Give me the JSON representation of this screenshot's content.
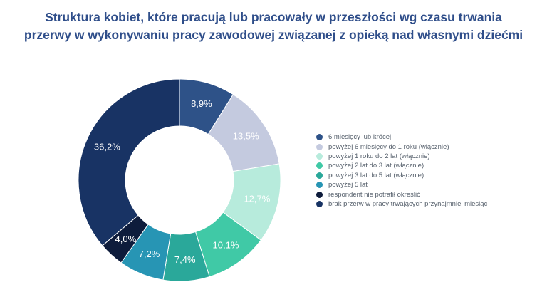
{
  "title": {
    "line1": "Struktura kobiet, które pracują lub pracowały w przeszłości wg czasu trwania",
    "line2": "przerwy w wykonywaniu pracy zawodowej związanej z opieką nad własnymi dziećmi"
  },
  "chart_data": {
    "type": "pie",
    "donut": true,
    "title": "Struktura kobiet, które pracują lub pracowały w przeszłości wg czasu trwania przerwy w wykonywaniu pracy zawodowej związanej z opieką nad własnymi dziećmi",
    "legend_position": "right",
    "slices": [
      {
        "label": "6 miesięcy lub krócej",
        "value": 8.9,
        "display": "8,9%",
        "color": "#2e5288",
        "text_color": "#ffffff"
      },
      {
        "label": "powyżej 6 miesięcy do 1 roku (włącznie)",
        "value": 13.5,
        "display": "13,5%",
        "color": "#c4cadf",
        "text_color": "#ffffff"
      },
      {
        "label": "powyżej 1 roku do 2 lat (włącznie)",
        "value": 12.7,
        "display": "12,7%",
        "color": "#b7ebdc",
        "text_color": "#ffffff"
      },
      {
        "label": "powyżej 2 lat do 3 lat (włącznie)",
        "value": 10.1,
        "display": "10,1%",
        "color": "#40c9a6",
        "text_color": "#ffffff"
      },
      {
        "label": "powyżej 3 lat do 5 lat (włącznie)",
        "value": 7.4,
        "display": "7,4%",
        "color": "#2aa89a",
        "text_color": "#ffffff"
      },
      {
        "label": "powyżej 5 lat",
        "value": 7.2,
        "display": "7,2%",
        "color": "#2795b4",
        "text_color": "#ffffff"
      },
      {
        "label": "respondent nie potrafił określić",
        "value": 4.0,
        "display": "4,0%",
        "color": "#0e1c3c",
        "text_color": "#ffffff"
      },
      {
        "label": "brak przerw w pracy trwających przynajmniej miesiąc",
        "value": 36.2,
        "display": "36,2%",
        "color": "#183364",
        "text_color": "#ffffff"
      }
    ]
  }
}
